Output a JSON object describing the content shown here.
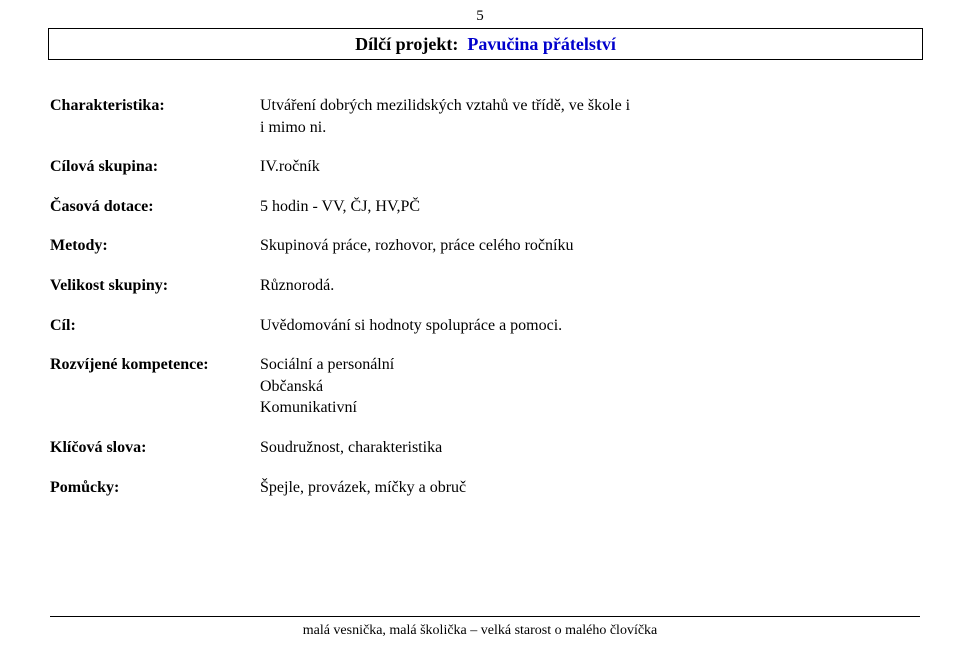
{
  "page_number": "5",
  "banner": {
    "label": "Dílčí projekt:",
    "title": "Pavučina přátelství",
    "label_color": "#000000",
    "title_color": "#0000cc"
  },
  "rows": {
    "charakteristika": {
      "label": "Charakteristika:",
      "line1": "Utváření dobrých mezilidských vztahů ve třídě, ve škole i",
      "line2": "i mimo ni."
    },
    "cilova_skupina": {
      "label": "Cílová skupina:",
      "value": "IV.ročník"
    },
    "casova_dotace": {
      "label": "Časová dotace:",
      "value": "5 hodin - VV, ČJ, HV,PČ"
    },
    "metody": {
      "label": "Metody:",
      "value": "Skupinová práce, rozhovor, práce celého ročníku"
    },
    "velikost_skupiny": {
      "label": "Velikost skupiny:",
      "value": "Různorodá."
    },
    "cil": {
      "label": "Cíl:",
      "value": "Uvědomování si hodnoty spolupráce a pomoci."
    },
    "rozvijene_kompetence": {
      "label": "Rozvíjené kompetence:",
      "line1": "Sociální a personální",
      "line2": "Občanská",
      "line3": "Komunikativní"
    },
    "klicova_slova": {
      "label": "Klíčová slova:",
      "value": "Soudružnost, charakteristika"
    },
    "pomucky": {
      "label": "Pomůcky:",
      "value": "Špejle, provázek, míčky a obruč"
    }
  },
  "footer": "malá vesnička, malá školička – velká starost o malého človíčka"
}
